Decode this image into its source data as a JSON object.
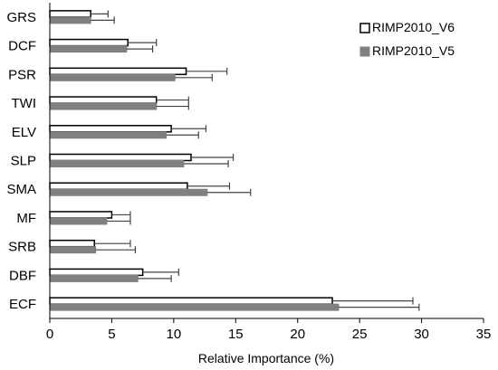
{
  "chart_data": {
    "type": "bar",
    "orientation": "horizontal",
    "categories": [
      "GRS",
      "DCF",
      "PSR",
      "TWI",
      "ELV",
      "SLP",
      "SMA",
      "MF",
      "SRB",
      "DBF",
      "ECF"
    ],
    "series": [
      {
        "name": "RIMP2010_V6",
        "color": "#ffffff",
        "stroke": "#000000",
        "values": [
          3.3,
          6.3,
          11.0,
          8.6,
          9.8,
          11.4,
          11.1,
          5.0,
          3.6,
          7.5,
          22.8
        ],
        "errors": [
          1.4,
          2.3,
          3.3,
          2.6,
          2.8,
          3.4,
          3.4,
          1.5,
          2.9,
          2.9,
          6.5
        ]
      },
      {
        "name": "RIMP2010_V5",
        "color": "#808080",
        "stroke": "#808080",
        "values": [
          3.3,
          6.2,
          10.1,
          8.6,
          9.4,
          10.8,
          12.7,
          4.6,
          3.7,
          7.1,
          23.3
        ],
        "errors": [
          1.9,
          2.1,
          3.0,
          2.6,
          2.6,
          3.6,
          3.5,
          1.9,
          3.2,
          2.7,
          6.5
        ]
      }
    ],
    "xlabel": "Relative Importance (%)",
    "xlim": [
      0,
      35
    ],
    "xticks": [
      "0",
      "5",
      "10",
      "15",
      "20",
      "25",
      "30",
      "35"
    ],
    "grid": false,
    "legend_position": "top-right"
  }
}
